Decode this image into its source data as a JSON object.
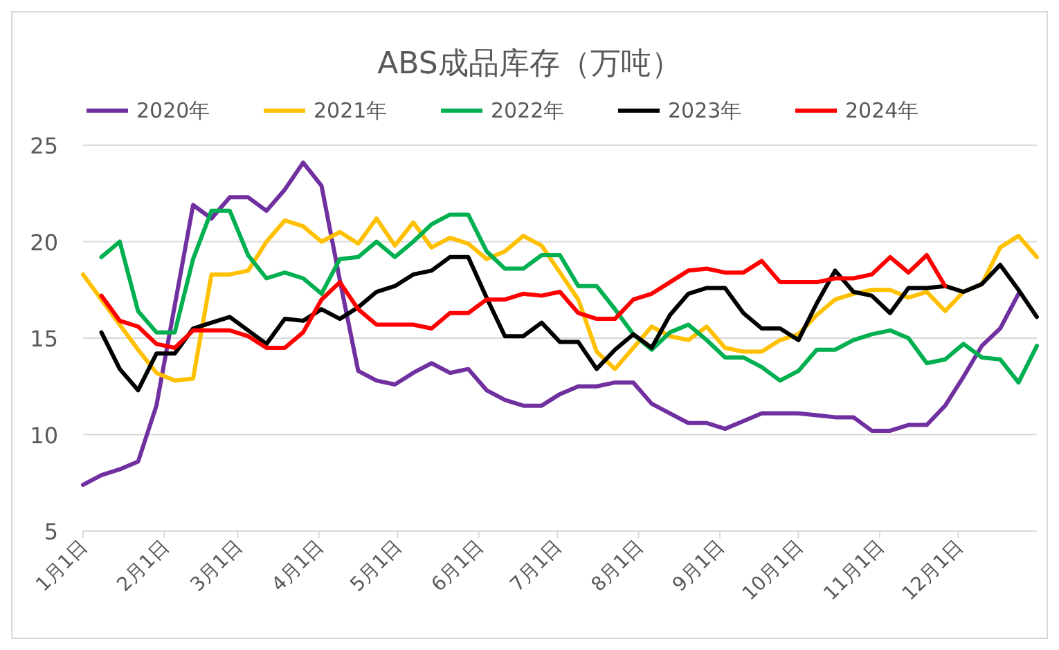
{
  "chart_data": {
    "type": "line",
    "title": "ABS成品库存（万吨）",
    "x": [
      "--01-01",
      "--01-08",
      "--01-15",
      "--01-22",
      "--01-29",
      "--02-05",
      "--02-12",
      "--02-19",
      "--02-26",
      "--03-05",
      "--03-12",
      "--03-19",
      "--03-26",
      "--04-02",
      "--04-09",
      "--04-16",
      "--04-23",
      "--04-30",
      "--05-07",
      "--05-14",
      "--05-21",
      "--05-28",
      "--06-04",
      "--06-11",
      "--06-18",
      "--06-25",
      "--07-02",
      "--07-09",
      "--07-16",
      "--07-23",
      "--07-30",
      "--08-06",
      "--08-13",
      "--08-20",
      "--08-27",
      "--09-03",
      "--09-10",
      "--09-17",
      "--09-24",
      "--10-01",
      "--10-08",
      "--10-15",
      "--10-22",
      "--10-29",
      "--11-05",
      "--11-12",
      "--11-19",
      "--11-26",
      "--12-03",
      "--12-10",
      "--12-17",
      "--12-24",
      "--12-31"
    ],
    "series": [
      {
        "name": "2020年",
        "color": "#7030a0",
        "values": [
          7.4,
          7.9,
          8.2,
          8.6,
          11.5,
          16.7,
          21.9,
          21.2,
          22.3,
          22.3,
          21.6,
          22.7,
          24.1,
          22.9,
          18,
          13.3,
          12.8,
          12.6,
          13.2,
          13.7,
          13.2,
          13.4,
          12.3,
          11.8,
          11.5,
          11.5,
          12.1,
          12.5,
          12.5,
          12.7,
          12.7,
          11.6,
          11.1,
          10.6,
          10.6,
          10.3,
          10.7,
          11.1,
          11.1,
          11.1,
          11.0,
          10.9,
          10.9,
          10.2,
          10.2,
          10.5,
          10.5,
          11.5,
          13.0,
          14.6,
          15.5,
          17.3,
          null
        ]
      },
      {
        "name": "2021年",
        "color": "#ffc000",
        "values": [
          18.3,
          17.0,
          15.7,
          14.4,
          13.2,
          12.8,
          12.9,
          18.3,
          18.3,
          18.5,
          20.0,
          21.1,
          20.8,
          20.0,
          20.5,
          19.9,
          21.2,
          19.8,
          21.0,
          19.7,
          20.2,
          19.9,
          19.1,
          19.5,
          20.3,
          19.8,
          18.4,
          17.0,
          14.3,
          13.4,
          14.5,
          15.6,
          15.1,
          14.9,
          15.6,
          14.5,
          14.3,
          14.3,
          14.9,
          15.2,
          16.2,
          17.0,
          17.3,
          17.5,
          17.5,
          17.1,
          17.4,
          16.4,
          17.4,
          17.8,
          19.7,
          20.3,
          19.2
        ]
      },
      {
        "name": "2022年",
        "color": "#00b050",
        "values": [
          null,
          19.2,
          20.0,
          16.4,
          15.3,
          15.3,
          19.1,
          21.6,
          21.6,
          19.3,
          18.1,
          18.4,
          18.1,
          17.3,
          19.1,
          19.2,
          20.0,
          19.2,
          20.0,
          20.9,
          21.4,
          21.4,
          19.5,
          18.6,
          18.6,
          19.3,
          19.3,
          17.7,
          17.7,
          16.5,
          15.2,
          14.4,
          15.3,
          15.7,
          14.9,
          14.0,
          14.0,
          13.5,
          12.8,
          13.3,
          14.4,
          14.4,
          14.9,
          15.2,
          15.4,
          15.0,
          13.7,
          13.9,
          14.7,
          14.0,
          13.9,
          12.7,
          14.6
        ]
      },
      {
        "name": "2023年",
        "color": "#000000",
        "values": [
          null,
          15.3,
          13.4,
          12.3,
          14.2,
          14.2,
          15.5,
          15.8,
          16.1,
          15.4,
          14.7,
          16.0,
          15.9,
          16.5,
          16.0,
          16.6,
          17.4,
          17.7,
          18.3,
          18.5,
          19.2,
          19.2,
          17.1,
          15.1,
          15.1,
          15.8,
          14.8,
          14.8,
          13.4,
          14.4,
          15.2,
          14.5,
          16.2,
          17.3,
          17.6,
          17.6,
          16.3,
          15.5,
          15.5,
          14.9,
          16.8,
          18.5,
          17.4,
          17.2,
          16.3,
          17.6,
          17.6,
          17.7,
          17.4,
          17.8,
          18.8,
          17.5,
          16.1
        ]
      },
      {
        "name": "2024年",
        "color": "#ff0000",
        "values": [
          null,
          17.2,
          15.9,
          15.6,
          14.7,
          14.5,
          15.4,
          15.4,
          15.4,
          15.1,
          14.5,
          14.5,
          15.3,
          17.0,
          17.9,
          16.5,
          15.7,
          15.7,
          15.7,
          15.5,
          16.3,
          16.3,
          17.0,
          17.0,
          17.3,
          17.2,
          17.4,
          16.3,
          16.0,
          16.0,
          17.0,
          17.3,
          17.9,
          18.5,
          18.6,
          18.4,
          18.4,
          19.0,
          17.9,
          17.9,
          17.9,
          18.1,
          18.1,
          18.3,
          19.2,
          18.4,
          19.3,
          17.7,
          null,
          null,
          null,
          null,
          null
        ]
      }
    ],
    "xlim": [
      "--01-01",
      "--12-31"
    ],
    "xticks": [
      {
        "value": "--01-01",
        "label": "1月1日"
      },
      {
        "value": "--02-01",
        "label": "2月1日"
      },
      {
        "value": "--03-01",
        "label": "3月1日"
      },
      {
        "value": "--04-01",
        "label": "4月1日"
      },
      {
        "value": "--05-01",
        "label": "5月1日"
      },
      {
        "value": "--06-01",
        "label": "6月1日"
      },
      {
        "value": "--07-01",
        "label": "7月1日"
      },
      {
        "value": "--08-01",
        "label": "8月1日"
      },
      {
        "value": "--09-01",
        "label": "9月1日"
      },
      {
        "value": "--10-01",
        "label": "10月1日"
      },
      {
        "value": "--11-01",
        "label": "11月1日"
      },
      {
        "value": "--12-01",
        "label": "12月1日"
      }
    ],
    "ylim": [
      5,
      25
    ],
    "yticks": [
      5,
      10,
      15,
      20,
      25
    ],
    "grid": "y",
    "legend": "top",
    "marker": "none",
    "line_style": "solid"
  }
}
